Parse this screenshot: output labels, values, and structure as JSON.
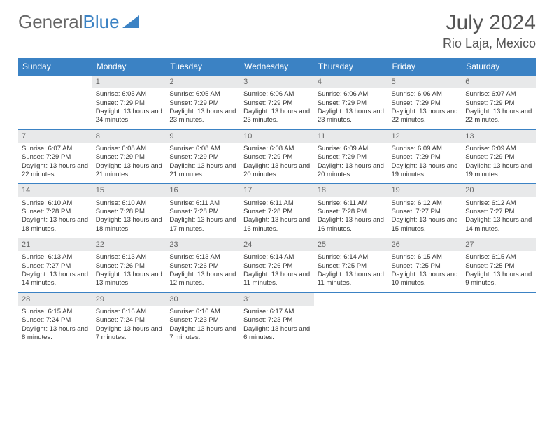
{
  "logo": {
    "part1": "General",
    "part2": "Blue"
  },
  "title": "July 2024",
  "location": "Rio Laja, Mexico",
  "colors": {
    "header_bg": "#3b82c4",
    "header_text": "#ffffff",
    "daynum_bg": "#e8e9ea",
    "border": "#3b82c4",
    "text": "#333333",
    "muted": "#666666",
    "bg": "#ffffff"
  },
  "dayHeaders": [
    "Sunday",
    "Monday",
    "Tuesday",
    "Wednesday",
    "Thursday",
    "Friday",
    "Saturday"
  ],
  "weeks": [
    [
      null,
      {
        "n": "1",
        "sr": "Sunrise: 6:05 AM",
        "ss": "Sunset: 7:29 PM",
        "dl": "Daylight: 13 hours and 24 minutes."
      },
      {
        "n": "2",
        "sr": "Sunrise: 6:05 AM",
        "ss": "Sunset: 7:29 PM",
        "dl": "Daylight: 13 hours and 23 minutes."
      },
      {
        "n": "3",
        "sr": "Sunrise: 6:06 AM",
        "ss": "Sunset: 7:29 PM",
        "dl": "Daylight: 13 hours and 23 minutes."
      },
      {
        "n": "4",
        "sr": "Sunrise: 6:06 AM",
        "ss": "Sunset: 7:29 PM",
        "dl": "Daylight: 13 hours and 23 minutes."
      },
      {
        "n": "5",
        "sr": "Sunrise: 6:06 AM",
        "ss": "Sunset: 7:29 PM",
        "dl": "Daylight: 13 hours and 22 minutes."
      },
      {
        "n": "6",
        "sr": "Sunrise: 6:07 AM",
        "ss": "Sunset: 7:29 PM",
        "dl": "Daylight: 13 hours and 22 minutes."
      }
    ],
    [
      {
        "n": "7",
        "sr": "Sunrise: 6:07 AM",
        "ss": "Sunset: 7:29 PM",
        "dl": "Daylight: 13 hours and 22 minutes."
      },
      {
        "n": "8",
        "sr": "Sunrise: 6:08 AM",
        "ss": "Sunset: 7:29 PM",
        "dl": "Daylight: 13 hours and 21 minutes."
      },
      {
        "n": "9",
        "sr": "Sunrise: 6:08 AM",
        "ss": "Sunset: 7:29 PM",
        "dl": "Daylight: 13 hours and 21 minutes."
      },
      {
        "n": "10",
        "sr": "Sunrise: 6:08 AM",
        "ss": "Sunset: 7:29 PM",
        "dl": "Daylight: 13 hours and 20 minutes."
      },
      {
        "n": "11",
        "sr": "Sunrise: 6:09 AM",
        "ss": "Sunset: 7:29 PM",
        "dl": "Daylight: 13 hours and 20 minutes."
      },
      {
        "n": "12",
        "sr": "Sunrise: 6:09 AM",
        "ss": "Sunset: 7:29 PM",
        "dl": "Daylight: 13 hours and 19 minutes."
      },
      {
        "n": "13",
        "sr": "Sunrise: 6:09 AM",
        "ss": "Sunset: 7:29 PM",
        "dl": "Daylight: 13 hours and 19 minutes."
      }
    ],
    [
      {
        "n": "14",
        "sr": "Sunrise: 6:10 AM",
        "ss": "Sunset: 7:28 PM",
        "dl": "Daylight: 13 hours and 18 minutes."
      },
      {
        "n": "15",
        "sr": "Sunrise: 6:10 AM",
        "ss": "Sunset: 7:28 PM",
        "dl": "Daylight: 13 hours and 18 minutes."
      },
      {
        "n": "16",
        "sr": "Sunrise: 6:11 AM",
        "ss": "Sunset: 7:28 PM",
        "dl": "Daylight: 13 hours and 17 minutes."
      },
      {
        "n": "17",
        "sr": "Sunrise: 6:11 AM",
        "ss": "Sunset: 7:28 PM",
        "dl": "Daylight: 13 hours and 16 minutes."
      },
      {
        "n": "18",
        "sr": "Sunrise: 6:11 AM",
        "ss": "Sunset: 7:28 PM",
        "dl": "Daylight: 13 hours and 16 minutes."
      },
      {
        "n": "19",
        "sr": "Sunrise: 6:12 AM",
        "ss": "Sunset: 7:27 PM",
        "dl": "Daylight: 13 hours and 15 minutes."
      },
      {
        "n": "20",
        "sr": "Sunrise: 6:12 AM",
        "ss": "Sunset: 7:27 PM",
        "dl": "Daylight: 13 hours and 14 minutes."
      }
    ],
    [
      {
        "n": "21",
        "sr": "Sunrise: 6:13 AM",
        "ss": "Sunset: 7:27 PM",
        "dl": "Daylight: 13 hours and 14 minutes."
      },
      {
        "n": "22",
        "sr": "Sunrise: 6:13 AM",
        "ss": "Sunset: 7:26 PM",
        "dl": "Daylight: 13 hours and 13 minutes."
      },
      {
        "n": "23",
        "sr": "Sunrise: 6:13 AM",
        "ss": "Sunset: 7:26 PM",
        "dl": "Daylight: 13 hours and 12 minutes."
      },
      {
        "n": "24",
        "sr": "Sunrise: 6:14 AM",
        "ss": "Sunset: 7:26 PM",
        "dl": "Daylight: 13 hours and 11 minutes."
      },
      {
        "n": "25",
        "sr": "Sunrise: 6:14 AM",
        "ss": "Sunset: 7:25 PM",
        "dl": "Daylight: 13 hours and 11 minutes."
      },
      {
        "n": "26",
        "sr": "Sunrise: 6:15 AM",
        "ss": "Sunset: 7:25 PM",
        "dl": "Daylight: 13 hours and 10 minutes."
      },
      {
        "n": "27",
        "sr": "Sunrise: 6:15 AM",
        "ss": "Sunset: 7:25 PM",
        "dl": "Daylight: 13 hours and 9 minutes."
      }
    ],
    [
      {
        "n": "28",
        "sr": "Sunrise: 6:15 AM",
        "ss": "Sunset: 7:24 PM",
        "dl": "Daylight: 13 hours and 8 minutes."
      },
      {
        "n": "29",
        "sr": "Sunrise: 6:16 AM",
        "ss": "Sunset: 7:24 PM",
        "dl": "Daylight: 13 hours and 7 minutes."
      },
      {
        "n": "30",
        "sr": "Sunrise: 6:16 AM",
        "ss": "Sunset: 7:23 PM",
        "dl": "Daylight: 13 hours and 7 minutes."
      },
      {
        "n": "31",
        "sr": "Sunrise: 6:17 AM",
        "ss": "Sunset: 7:23 PM",
        "dl": "Daylight: 13 hours and 6 minutes."
      },
      null,
      null,
      null
    ]
  ]
}
